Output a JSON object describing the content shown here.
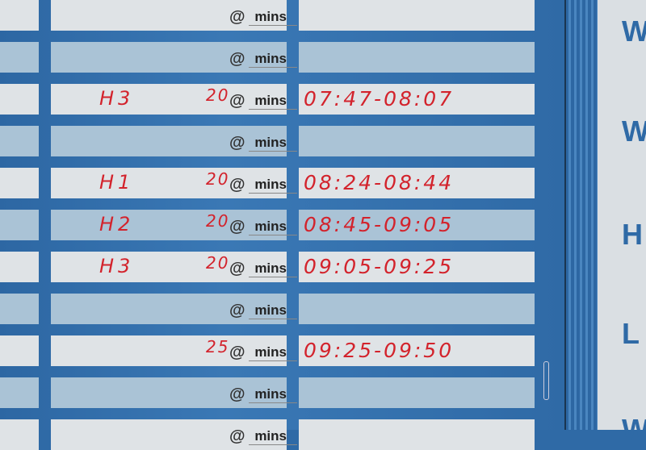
{
  "board": {
    "at_symbol": "@",
    "unit_label": "mins",
    "ink_color": "#d3232c",
    "frame_color": "#2f6aa6",
    "rows": [
      {
        "name": "",
        "duration": "",
        "time": ""
      },
      {
        "name": "",
        "duration": "",
        "time": ""
      },
      {
        "name": "H3",
        "duration": "20",
        "time": "07:47-08:07"
      },
      {
        "name": "",
        "duration": "",
        "time": ""
      },
      {
        "name": "H1",
        "duration": "20",
        "time": "08:24-08:44"
      },
      {
        "name": "H2",
        "duration": "20",
        "time": "08:45-09:05"
      },
      {
        "name": "H3",
        "duration": "20",
        "time": "09:05-09:25"
      },
      {
        "name": "",
        "duration": "",
        "time": ""
      },
      {
        "name": "",
        "duration": "25",
        "time": "09:25-09:50"
      },
      {
        "name": "",
        "duration": "",
        "time": ""
      },
      {
        "name": "",
        "duration": "",
        "time": ""
      }
    ]
  },
  "side_panel": {
    "letters": [
      "W",
      "W",
      "H",
      "L",
      "W"
    ]
  }
}
